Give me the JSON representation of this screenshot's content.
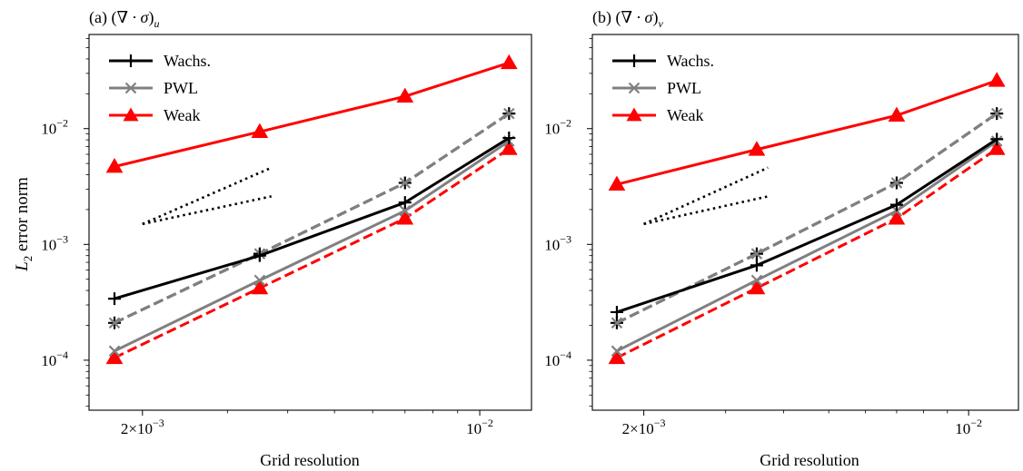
{
  "figure": {
    "ylabel_main": "L",
    "ylabel_sub": "2",
    "ylabel_rest": " error norm"
  },
  "chart_data": [
    {
      "type": "line",
      "panel_prefix": "(a) (",
      "panel_symbol": "∇ · σ",
      "panel_suffix": ")",
      "panel_subscript": "u",
      "xlabel": "Grid resolution",
      "x_scale": "log",
      "y_scale": "log",
      "xlim": [
        0.00155,
        0.0128
      ],
      "ylim": [
        3.7e-05,
        0.065
      ],
      "x_ticks": [
        {
          "value": 0.002,
          "label_base": "2×10",
          "label_exp": "−3"
        },
        {
          "value": 0.01,
          "label_base": "10",
          "label_exp": "−2"
        }
      ],
      "y_ticks": [
        {
          "value": 0.0001,
          "label_base": "10",
          "label_exp": "−4"
        },
        {
          "value": 0.001,
          "label_base": "10",
          "label_exp": "−3"
        },
        {
          "value": 0.01,
          "label_base": "10",
          "label_exp": "−2"
        }
      ],
      "legend_position": "top-left",
      "x": [
        0.00175,
        0.0035,
        0.007,
        0.0115
      ],
      "series": [
        {
          "name": "Wachs.",
          "color": "#000000",
          "marker": "plus",
          "dash": "solid",
          "values": [
            0.00034,
            0.0008,
            0.0023,
            0.0083
          ]
        },
        {
          "name": "PWL",
          "color": "#808080",
          "marker": "x",
          "dash": "solid",
          "values": [
            0.00012,
            0.00049,
            0.00195,
            0.0078
          ]
        },
        {
          "name": "Weak",
          "color": "#ff0000",
          "marker": "triangle",
          "dash": "solid",
          "values": [
            0.0047,
            0.0094,
            0.019,
            0.037
          ]
        },
        {
          "color": "#000000",
          "marker": "plus",
          "dash": "dashed",
          "values": [
            0.00021,
            0.00083,
            0.0034,
            0.0135
          ]
        },
        {
          "color": "#808080",
          "marker": "x",
          "dash": "dashed",
          "values": [
            0.00021,
            0.00083,
            0.0034,
            0.0135
          ]
        },
        {
          "color": "#ff0000",
          "marker": "triangle",
          "dash": "dashed",
          "values": [
            0.000105,
            0.00042,
            0.00168,
            0.0067
          ]
        }
      ],
      "reference_lines": [
        {
          "style": "dotted",
          "color": "#000000",
          "x": [
            0.002,
            0.0037
          ],
          "y": [
            0.0015,
            0.0046
          ]
        },
        {
          "style": "dotted",
          "color": "#000000",
          "x": [
            0.002,
            0.0037
          ],
          "y": [
            0.0015,
            0.0026
          ]
        }
      ]
    },
    {
      "type": "line",
      "panel_prefix": "(b) (",
      "panel_symbol": "∇ · σ",
      "panel_suffix": ")",
      "panel_subscript": "v",
      "xlabel": "Grid resolution",
      "x_scale": "log",
      "y_scale": "log",
      "xlim": [
        0.00155,
        0.0128
      ],
      "ylim": [
        3.7e-05,
        0.065
      ],
      "x_ticks": [
        {
          "value": 0.002,
          "label_base": "2×10",
          "label_exp": "−3"
        },
        {
          "value": 0.01,
          "label_base": "10",
          "label_exp": "−2"
        }
      ],
      "y_ticks": [
        {
          "value": 0.0001,
          "label_base": "10",
          "label_exp": "−4"
        },
        {
          "value": 0.001,
          "label_base": "10",
          "label_exp": "−3"
        },
        {
          "value": 0.01,
          "label_base": "10",
          "label_exp": "−2"
        }
      ],
      "legend_position": "top-left",
      "x": [
        0.00175,
        0.0035,
        0.007,
        0.0115
      ],
      "series": [
        {
          "name": "Wachs.",
          "color": "#000000",
          "marker": "plus",
          "dash": "solid",
          "values": [
            0.00026,
            0.00066,
            0.0022,
            0.0081
          ]
        },
        {
          "name": "PWL",
          "color": "#808080",
          "marker": "x",
          "dash": "solid",
          "values": [
            0.00012,
            0.00049,
            0.00195,
            0.0078
          ]
        },
        {
          "name": "Weak",
          "color": "#ff0000",
          "marker": "triangle",
          "dash": "solid",
          "values": [
            0.0033,
            0.0066,
            0.013,
            0.026
          ]
        },
        {
          "color": "#000000",
          "marker": "plus",
          "dash": "dashed",
          "values": [
            0.00021,
            0.00083,
            0.0034,
            0.0135
          ]
        },
        {
          "color": "#808080",
          "marker": "x",
          "dash": "dashed",
          "values": [
            0.00021,
            0.00083,
            0.0034,
            0.0135
          ]
        },
        {
          "color": "#ff0000",
          "marker": "triangle",
          "dash": "dashed",
          "values": [
            0.000105,
            0.00042,
            0.00168,
            0.0067
          ]
        }
      ],
      "reference_lines": [
        {
          "style": "dotted",
          "color": "#000000",
          "x": [
            0.002,
            0.0037
          ],
          "y": [
            0.0015,
            0.0046
          ]
        },
        {
          "style": "dotted",
          "color": "#000000",
          "x": [
            0.002,
            0.0037
          ],
          "y": [
            0.0015,
            0.0026
          ]
        }
      ]
    }
  ]
}
